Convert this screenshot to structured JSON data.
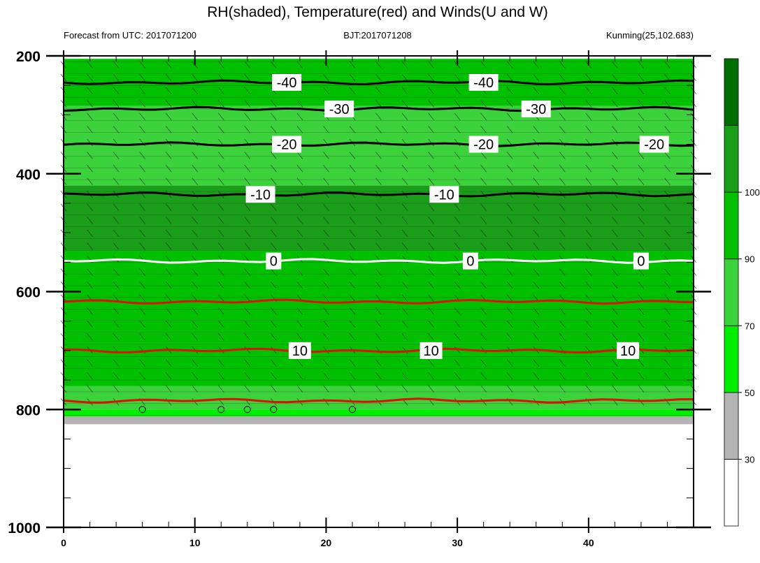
{
  "chart_data": {
    "type": "heatmap",
    "title": "RH(shaded), Temperature(red) and Winds(U and W)",
    "subtitle_left": "Forecast from UTC: 2017071200",
    "subtitle_center": "BJT:2017071208",
    "subtitle_right": "Kunming(25,102.683)",
    "x_ticks": [
      "0",
      "10",
      "20",
      "30",
      "40"
    ],
    "x_tick_values": [
      0,
      10,
      20,
      30,
      40
    ],
    "xlim": [
      0,
      48
    ],
    "y_ticks": [
      "200",
      "400",
      "600",
      "800",
      "1000"
    ],
    "y_tick_values": [
      200,
      400,
      600,
      800,
      1000
    ],
    "ylim": [
      200,
      1000
    ],
    "y_inverted": true,
    "colorbar": {
      "labels": [
        "30",
        "50",
        "70",
        "90",
        "100"
      ],
      "levels": [
        30,
        50,
        70,
        90,
        100
      ],
      "colors": [
        "#ffffff",
        "#b4b4b4",
        "#00ee00",
        "#3cd23c",
        "#00c000",
        "#1a9e1a",
        "#006e00"
      ]
    },
    "rh_bands": [
      {
        "p_top": 205,
        "p_bottom": 285,
        "rh_level": 90
      },
      {
        "p_top": 285,
        "p_bottom": 420,
        "rh_level": 70
      },
      {
        "p_top": 420,
        "p_bottom": 530,
        "rh_level": 100
      },
      {
        "p_top": 530,
        "p_bottom": 760,
        "rh_level": 90
      },
      {
        "p_top": 760,
        "p_bottom": 800,
        "rh_level": 70
      },
      {
        "p_top": 800,
        "p_bottom": 812,
        "rh_level": 50
      },
      {
        "p_top": 812,
        "p_bottom": 825,
        "rh_level": 30
      }
    ],
    "temperature_contours": [
      {
        "label": "-40",
        "color": "black",
        "p": 245,
        "label_x": [
          17,
          32
        ]
      },
      {
        "label": "-30",
        "color": "black",
        "p": 290,
        "label_x": [
          21,
          36
        ]
      },
      {
        "label": "-20",
        "color": "black",
        "p": 350,
        "label_x": [
          17,
          32,
          45
        ]
      },
      {
        "label": "-10",
        "color": "black",
        "p": 435,
        "label_x": [
          15,
          29
        ]
      },
      {
        "label": "0",
        "color": "white",
        "p": 548,
        "label_x": [
          16,
          31,
          44
        ]
      },
      {
        "label": "",
        "color": "red",
        "p": 617,
        "label_x": []
      },
      {
        "label": "10",
        "color": "red",
        "p": 700,
        "label_x": [
          18,
          28,
          43
        ]
      },
      {
        "label": "",
        "color": "red",
        "p": 785,
        "label_x": []
      }
    ],
    "calm_markers_x": [
      6,
      12,
      14,
      16,
      22
    ]
  }
}
